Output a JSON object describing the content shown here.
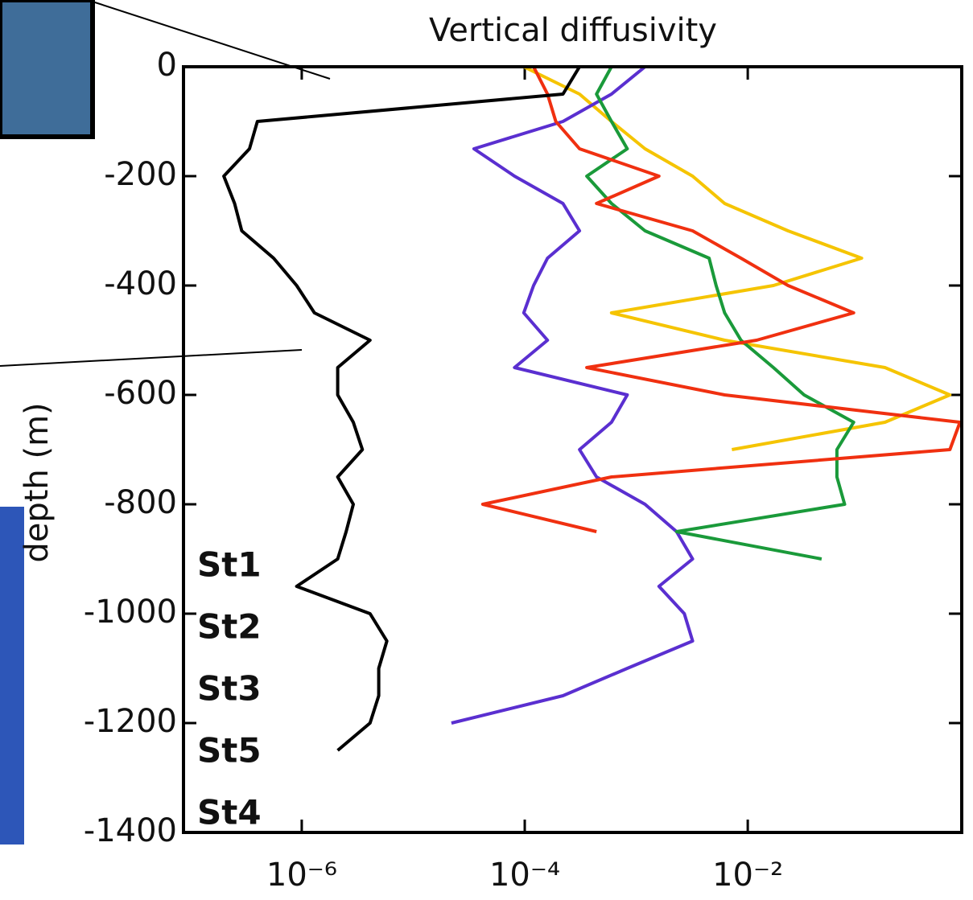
{
  "chart_data": {
    "type": "line",
    "title": "Vertical diffusivity",
    "ylabel": "depth (m)",
    "xscale": "log",
    "xlim": [
      8.7e-08,
      0.83
    ],
    "xticks": [
      {
        "value": 1e-06,
        "label": "10⁻⁶"
      },
      {
        "value": 0.0001,
        "label": "10⁻⁴"
      },
      {
        "value": 0.01,
        "label": "10⁻²"
      }
    ],
    "ylim": [
      -1400,
      0
    ],
    "yticks": [
      0,
      -200,
      -400,
      -600,
      -800,
      -1000,
      -1200,
      -1400
    ],
    "y": [
      0,
      -50,
      -100,
      -150,
      -200,
      -250,
      -300,
      -350,
      -400,
      -450,
      -500,
      -550,
      -600,
      -650,
      -700,
      -750,
      -800,
      -850,
      -900,
      -950,
      -1000,
      -1050,
      -1100,
      -1150,
      -1200,
      -1250,
      -1300
    ],
    "series": [
      {
        "name": "St1",
        "color": "#f5c400",
        "values": [
          9.8e-05,
          0.00031,
          0.0006,
          0.0012,
          0.0032,
          0.0062,
          0.023,
          0.105,
          0.017,
          0.0006,
          0.0062,
          0.17,
          0.65,
          0.17,
          0.0072,
          null,
          null,
          null,
          null,
          null,
          null,
          null,
          null,
          null,
          null,
          null,
          null
        ]
      },
      {
        "name": "St2",
        "color": "#5a2fd0",
        "values": [
          0.0012,
          0.0006,
          0.00022,
          3.5e-05,
          8.1e-05,
          0.00022,
          0.00031,
          0.00016,
          0.00012,
          9.8e-05,
          0.00016,
          8.1e-05,
          0.00083,
          0.0006,
          0.00031,
          0.00044,
          0.0012,
          0.0023,
          0.0032,
          0.0016,
          0.0027,
          0.0032,
          0.00083,
          0.00022,
          2.2e-05,
          null,
          null
        ]
      },
      {
        "name": "St3",
        "color": "#1a9a3a",
        "values": [
          0.0006,
          0.00044,
          0.0006,
          0.00083,
          0.00036,
          0.0006,
          0.0012,
          0.0045,
          0.0052,
          0.0062,
          0.0087,
          0.017,
          0.032,
          0.089,
          0.063,
          0.063,
          0.074,
          0.0023,
          0.046,
          null,
          null,
          null,
          null,
          null,
          null,
          null,
          null
        ]
      },
      {
        "name": "St5",
        "color": "#f03010",
        "values": [
          0.00012,
          0.00016,
          0.00019,
          0.00031,
          0.0016,
          0.00044,
          0.0032,
          0.0087,
          0.023,
          0.089,
          0.012,
          0.00036,
          0.0062,
          0.8,
          0.65,
          0.0006,
          4.2e-05,
          0.00044,
          null,
          null,
          null,
          null,
          null,
          null,
          null,
          null,
          null
        ]
      },
      {
        "name": "St4",
        "color": "#000000",
        "values": [
          0.00031,
          0.00022,
          4e-07,
          3.4e-07,
          2e-07,
          2.5e-07,
          2.9e-07,
          5.6e-07,
          9e-07,
          1.3e-06,
          4.1e-06,
          2.1e-06,
          2.1e-06,
          2.9e-06,
          3.5e-06,
          2.1e-06,
          2.9e-06,
          2.5e-06,
          2.1e-06,
          9e-07,
          4.1e-06,
          5.8e-06,
          4.9e-06,
          4.9e-06,
          4.1e-06,
          2.1e-06,
          null
        ]
      }
    ]
  }
}
